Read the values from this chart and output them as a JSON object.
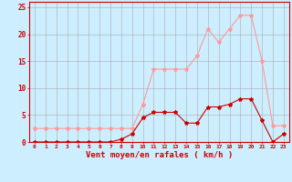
{
  "x": [
    0,
    1,
    2,
    3,
    4,
    5,
    6,
    7,
    8,
    9,
    10,
    11,
    12,
    13,
    14,
    15,
    16,
    17,
    18,
    19,
    20,
    21,
    22,
    23
  ],
  "y_rafales": [
    2.5,
    2.5,
    2.5,
    2.5,
    2.5,
    2.5,
    2.5,
    2.5,
    2.5,
    2.5,
    7,
    13.5,
    13.5,
    13.5,
    13.5,
    16,
    21,
    18.5,
    21,
    23.5,
    23.5,
    15,
    3,
    3
  ],
  "y_moyen": [
    0,
    0,
    0,
    0,
    0,
    0,
    0,
    0,
    0.5,
    1.5,
    4.5,
    5.5,
    5.5,
    5.5,
    3.5,
    3.5,
    6.5,
    6.5,
    7,
    8,
    8,
    4,
    0,
    1.5
  ],
  "color_rafales": "#ff9999",
  "color_moyen": "#cc0000",
  "bg_color": "#cceeff",
  "grid_color": "#aaaaaa",
  "xlabel": "Vent moyen/en rafales ( km/h )",
  "ylabel_ticks": [
    0,
    5,
    10,
    15,
    20,
    25
  ],
  "xlim": [
    -0.5,
    23.5
  ],
  "ylim": [
    0,
    26
  ],
  "tick_labels": [
    "0",
    "1",
    "2",
    "3",
    "4",
    "5",
    "6",
    "7",
    "8",
    "9",
    "10",
    "11",
    "12",
    "13",
    "14",
    "15",
    "16",
    "17",
    "18",
    "19",
    "20",
    "21",
    "22",
    "23"
  ]
}
